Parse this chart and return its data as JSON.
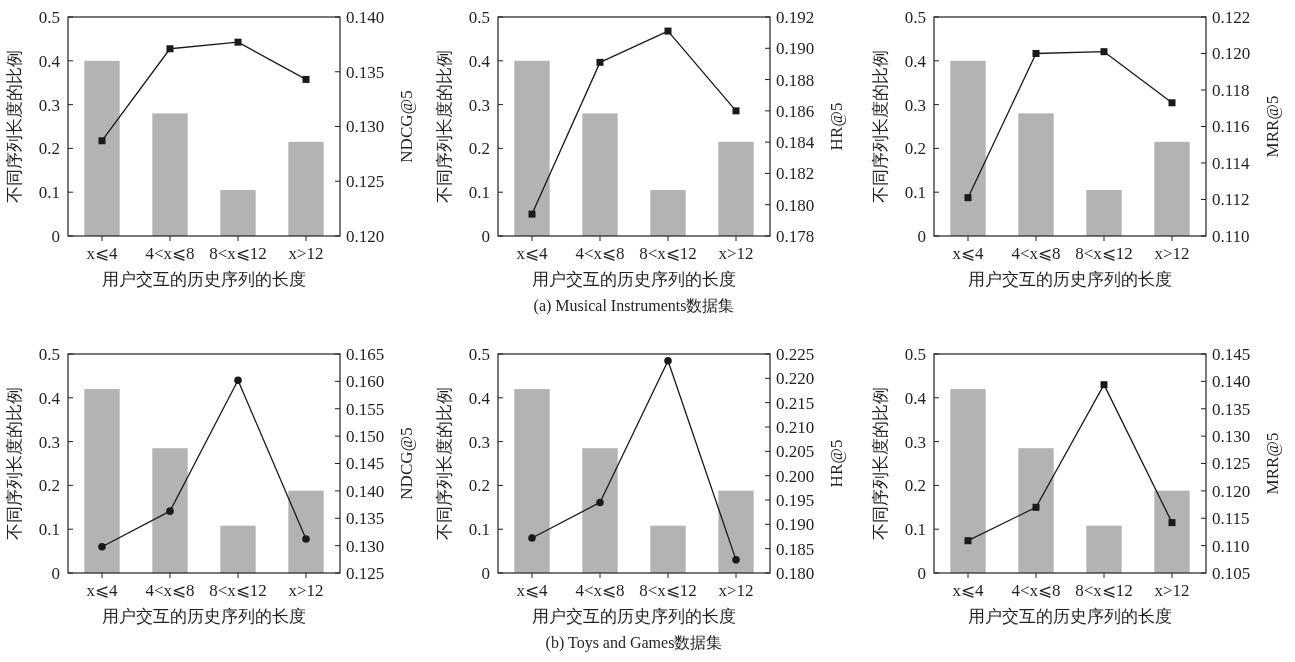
{
  "chart_data": [
    {
      "type": "bar",
      "categories": [
        "x⩽4",
        "4<x⩽8",
        "8<x⩽12",
        "x>12"
      ],
      "xlabel": "用户交互的历史序列的长度",
      "ylabel": "不同序列长度的比例",
      "y2label": "NDCG@5",
      "ylim": [
        0,
        0.5
      ],
      "yticks": [
        0,
        0.1,
        0.2,
        0.3,
        0.4,
        0.5
      ],
      "y2lim": [
        0.12,
        0.14
      ],
      "y2ticks": [
        {
          "value": 0.12,
          "label": "0.120"
        },
        {
          "value": 0.125,
          "label": "0.125"
        },
        {
          "value": 0.13,
          "label": "0.130"
        },
        {
          "value": 0.135,
          "label": "0.135"
        },
        {
          "value": 0.14,
          "label": "0.140"
        }
      ],
      "series": [
        {
          "color": "#b3b3b3",
          "values": [
            0.4,
            0.28,
            0.105,
            0.215
          ]
        },
        {
          "type": "line",
          "axis": "y2",
          "color": "#1a1a1a",
          "marker": "square",
          "values": [
            0.1287,
            0.1371,
            0.1377,
            0.1343
          ]
        }
      ]
    },
    {
      "type": "bar",
      "categories": [
        "x⩽4",
        "4<x⩽8",
        "8<x⩽12",
        "x>12"
      ],
      "xlabel": "用户交互的历史序列的长度",
      "ylabel": "不同序列长度的比例",
      "y2label": "HR@5",
      "ylim": [
        0,
        0.5
      ],
      "yticks": [
        0,
        0.1,
        0.2,
        0.3,
        0.4,
        0.5
      ],
      "y2lim": [
        0.178,
        0.192
      ],
      "y2ticks": [
        {
          "value": 0.178,
          "label": "0.178"
        },
        {
          "value": 0.18,
          "label": "0.180"
        },
        0.182,
        0.184,
        0.186,
        0.188,
        {
          "value": 0.19,
          "label": "0.190"
        },
        0.192
      ],
      "annotations": [
        "(a)  Musical Instruments数据集"
      ],
      "series": [
        {
          "color": "#b3b3b3",
          "values": [
            0.4,
            0.28,
            0.105,
            0.215
          ]
        },
        {
          "type": "line",
          "axis": "y2",
          "color": "#1a1a1a",
          "marker": "square",
          "values": [
            0.1794,
            0.1891,
            0.1911,
            0.186
          ]
        }
      ]
    },
    {
      "type": "bar",
      "categories": [
        "x⩽4",
        "4<x⩽8",
        "8<x⩽12",
        "x>12"
      ],
      "xlabel": "用户交互的历史序列的长度",
      "ylabel": "不同序列长度的比例",
      "y2label": "MRR@5",
      "ylim": [
        0,
        0.5
      ],
      "yticks": [
        0,
        0.1,
        0.2,
        0.3,
        0.4,
        0.5
      ],
      "y2lim": [
        0.11,
        0.122
      ],
      "y2ticks": [
        {
          "value": 0.11,
          "label": "0.110"
        },
        0.112,
        0.114,
        0.116,
        0.118,
        {
          "value": 0.12,
          "label": "0.120"
        },
        0.122
      ],
      "series": [
        {
          "color": "#b3b3b3",
          "values": [
            0.4,
            0.28,
            0.105,
            0.215
          ]
        },
        {
          "type": "line",
          "axis": "y2",
          "color": "#1a1a1a",
          "marker": "square",
          "values": [
            0.1121,
            0.12,
            0.1201,
            0.1173
          ]
        }
      ]
    },
    {
      "type": "bar",
      "categories": [
        "x⩽4",
        "4<x⩽8",
        "8<x⩽12",
        "x>12"
      ],
      "xlabel": "用户交互的历史序列的长度",
      "ylabel": "不同序列长度的比例",
      "y2label": "NDCG@5",
      "ylim": [
        0,
        0.5
      ],
      "yticks": [
        0,
        0.1,
        0.2,
        0.3,
        0.4,
        0.5
      ],
      "y2lim": [
        0.125,
        0.165
      ],
      "y2ticks": [
        0.125,
        {
          "value": 0.13,
          "label": "0.130"
        },
        0.135,
        {
          "value": 0.14,
          "label": "0.140"
        },
        0.145,
        {
          "value": 0.15,
          "label": "0.150"
        },
        0.155,
        {
          "value": 0.16,
          "label": "0.160"
        },
        0.165
      ],
      "series": [
        {
          "color": "#b3b3b3",
          "values": [
            0.42,
            0.285,
            0.108,
            0.188
          ]
        },
        {
          "type": "line",
          "axis": "y2",
          "color": "#1a1a1a",
          "marker": "circle",
          "values": [
            0.1298,
            0.1363,
            0.1602,
            0.1312
          ]
        }
      ]
    },
    {
      "type": "bar",
      "categories": [
        "x⩽4",
        "4<x⩽8",
        "8<x⩽12",
        "x>12"
      ],
      "xlabel": "用户交互的历史序列的长度",
      "ylabel": "不同序列长度的比例",
      "y2label": "HR@5",
      "ylim": [
        0,
        0.5
      ],
      "yticks": [
        0,
        0.1,
        0.2,
        0.3,
        0.4,
        0.5
      ],
      "y2lim": [
        0.18,
        0.225
      ],
      "y2ticks": [
        {
          "value": 0.18,
          "label": "0.180"
        },
        0.185,
        {
          "value": 0.19,
          "label": "0.190"
        },
        0.195,
        {
          "value": 0.2,
          "label": "0.200"
        },
        0.205,
        {
          "value": 0.21,
          "label": "0.210"
        },
        0.215,
        {
          "value": 0.22,
          "label": "0.220"
        },
        0.225
      ],
      "annotations": [
        "(b)  Toys and Games数据集"
      ],
      "series": [
        {
          "color": "#b3b3b3",
          "values": [
            0.42,
            0.285,
            0.108,
            0.188
          ]
        },
        {
          "type": "line",
          "axis": "y2",
          "color": "#1a1a1a",
          "marker": "circle",
          "values": [
            0.1872,
            0.1945,
            0.2236,
            0.1827
          ]
        }
      ]
    },
    {
      "type": "bar",
      "categories": [
        "x⩽4",
        "4<x⩽8",
        "8<x⩽12",
        "x>12"
      ],
      "xlabel": "用户交互的历史序列的长度",
      "ylabel": "不同序列长度的比例",
      "y2label": "MRR@5",
      "ylim": [
        0,
        0.5
      ],
      "yticks": [
        0,
        0.1,
        0.2,
        0.3,
        0.4,
        0.5
      ],
      "y2lim": [
        0.105,
        0.145
      ],
      "y2ticks": [
        0.105,
        {
          "value": 0.11,
          "label": "0.110"
        },
        0.115,
        {
          "value": 0.12,
          "label": "0.120"
        },
        0.125,
        {
          "value": 0.13,
          "label": "0.130"
        },
        0.135,
        {
          "value": 0.14,
          "label": "0.140"
        },
        0.145
      ],
      "series": [
        {
          "color": "#b3b3b3",
          "values": [
            0.42,
            0.285,
            0.108,
            0.188
          ]
        },
        {
          "type": "line",
          "axis": "y2",
          "color": "#1a1a1a",
          "marker": "square",
          "values": [
            0.1109,
            0.117,
            0.1394,
            0.1142
          ]
        }
      ]
    }
  ]
}
